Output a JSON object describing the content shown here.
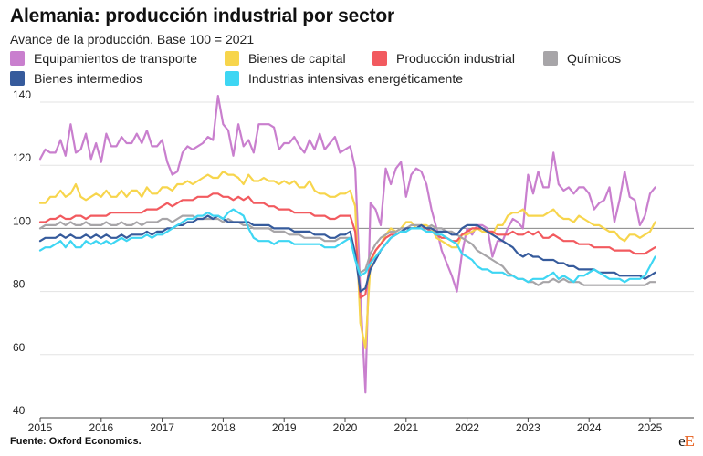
{
  "header": {
    "title": "Alemania: producción industrial por sector",
    "subtitle": "Avance de la producción. Base 100 = 2021"
  },
  "footer": {
    "source_label": "Fuente:",
    "source_text": "Oxford Economics.",
    "logo_a": "e",
    "logo_b": "E"
  },
  "chart_data": {
    "type": "line",
    "title": "Alemania: producción industrial por sector",
    "subtitle": "Avance de la producción. Base 100 = 2021",
    "xlabel": "",
    "ylabel": "",
    "x_start": "2015-01",
    "frequency": "monthly",
    "xlim": [
      "2015-01",
      "2025-03"
    ],
    "ylim": [
      40,
      140
    ],
    "x_ticks": [
      "2015",
      "2016",
      "2017",
      "2018",
      "2019",
      "2020",
      "2021",
      "2022",
      "2023",
      "2024",
      "2025"
    ],
    "y_ticks": [
      40,
      60,
      80,
      100,
      120,
      140
    ],
    "reference_line": 100,
    "grid": "horizontal",
    "legend_position": "top",
    "series": [
      {
        "name": "Equipamientos de transporte",
        "color": "#c97fce",
        "values": [
          122,
          125,
          124,
          124,
          128,
          123,
          133,
          124,
          125,
          130,
          122,
          127,
          121,
          130,
          126,
          126,
          129,
          127,
          127,
          130,
          127,
          131,
          126,
          126,
          128,
          121,
          117,
          118,
          124,
          126,
          125,
          126,
          127,
          129,
          128,
          142,
          133,
          131,
          123,
          133,
          126,
          128,
          124,
          133,
          133,
          133,
          132,
          125,
          127,
          127,
          129,
          126,
          124,
          128,
          125,
          130,
          125,
          127,
          129,
          124,
          125,
          126,
          119,
          80,
          48,
          108,
          106,
          101,
          119,
          114,
          119,
          121,
          110,
          117,
          119,
          118,
          114,
          106,
          100,
          93,
          89,
          85,
          80,
          92,
          100,
          98,
          101,
          101,
          100,
          91,
          96,
          96,
          100,
          103,
          102,
          100,
          117,
          111,
          118,
          113,
          113,
          124,
          114,
          112,
          113,
          111,
          113,
          113,
          111,
          106,
          108,
          109,
          113,
          102,
          109,
          118,
          110,
          109,
          101,
          104,
          111,
          113
        ]
      },
      {
        "name": "Bienes de capital",
        "color": "#f7d54c",
        "values": [
          108,
          108,
          110,
          110,
          112,
          110,
          111,
          114,
          110,
          109,
          110,
          111,
          110,
          112,
          110,
          110,
          112,
          110,
          112,
          112,
          110,
          113,
          111,
          111,
          113,
          113,
          112,
          114,
          114,
          115,
          114,
          115,
          116,
          117,
          116,
          116,
          118,
          117,
          117,
          116,
          114,
          117,
          115,
          115,
          116,
          115,
          115,
          114,
          115,
          114,
          115,
          113,
          113,
          115,
          112,
          111,
          111,
          110,
          110,
          111,
          111,
          112,
          107,
          70,
          62,
          89,
          93,
          95,
          98,
          100,
          99,
          100,
          102,
          102,
          100,
          101,
          101,
          100,
          97,
          96,
          95,
          94,
          94,
          98,
          98,
          99,
          100,
          99,
          99,
          98,
          101,
          101,
          104,
          105,
          105,
          106,
          104,
          104,
          104,
          104,
          105,
          106,
          104,
          103,
          103,
          102,
          104,
          103,
          102,
          101,
          101,
          100,
          99,
          99,
          97,
          96,
          98,
          98,
          97,
          98,
          99,
          102
        ]
      },
      {
        "name": "Producción industrial",
        "color": "#f25a5f",
        "values": [
          102,
          102,
          103,
          103,
          104,
          103,
          103,
          104,
          104,
          103,
          104,
          104,
          104,
          104,
          105,
          105,
          105,
          105,
          105,
          105,
          105,
          106,
          106,
          106,
          107,
          108,
          107,
          108,
          109,
          109,
          109,
          110,
          110,
          110,
          111,
          111,
          110,
          110,
          109,
          110,
          109,
          110,
          108,
          108,
          108,
          107,
          107,
          106,
          106,
          106,
          105,
          105,
          105,
          105,
          104,
          104,
          104,
          103,
          103,
          104,
          104,
          104,
          99,
          78,
          79,
          90,
          93,
          95,
          97,
          98,
          98,
          99,
          100,
          100,
          100,
          100,
          100,
          99,
          98,
          97,
          97,
          96,
          96,
          98,
          99,
          100,
          100,
          100,
          99,
          99,
          98,
          98,
          98,
          99,
          98,
          98,
          99,
          98,
          99,
          97,
          97,
          98,
          97,
          96,
          96,
          96,
          95,
          95,
          95,
          94,
          94,
          94,
          94,
          93,
          93,
          93,
          93,
          92,
          92,
          92,
          93,
          94
        ]
      },
      {
        "name": "Químicos",
        "color": "#a7a5a8",
        "values": [
          100,
          101,
          101,
          101,
          102,
          101,
          102,
          101,
          101,
          102,
          101,
          101,
          101,
          102,
          101,
          101,
          102,
          101,
          101,
          102,
          101,
          102,
          102,
          102,
          103,
          103,
          102,
          103,
          104,
          104,
          104,
          103,
          103,
          103,
          103,
          103,
          102,
          103,
          102,
          102,
          101,
          101,
          100,
          100,
          100,
          100,
          99,
          99,
          99,
          98,
          98,
          98,
          97,
          97,
          97,
          97,
          96,
          96,
          96,
          97,
          97,
          97,
          91,
          86,
          87,
          92,
          95,
          97,
          98,
          99,
          99,
          100,
          100,
          101,
          101,
          101,
          100,
          101,
          100,
          100,
          99,
          99,
          98,
          97,
          96,
          95,
          93,
          92,
          91,
          90,
          89,
          88,
          86,
          85,
          84,
          84,
          83,
          83,
          82,
          83,
          83,
          84,
          83,
          84,
          83,
          83,
          83,
          82,
          82,
          82,
          82,
          82,
          82,
          82,
          82,
          82,
          82,
          82,
          82,
          82,
          83,
          83
        ]
      },
      {
        "name": "Bienes intermedios",
        "color": "#365b9c",
        "values": [
          96,
          97,
          97,
          97,
          98,
          97,
          98,
          97,
          97,
          98,
          97,
          98,
          97,
          98,
          97,
          97,
          98,
          97,
          98,
          98,
          98,
          99,
          98,
          99,
          99,
          100,
          100,
          101,
          101,
          102,
          102,
          103,
          103,
          104,
          103,
          104,
          103,
          102,
          102,
          102,
          102,
          102,
          101,
          101,
          101,
          101,
          100,
          100,
          100,
          100,
          99,
          99,
          99,
          99,
          98,
          98,
          98,
          97,
          97,
          98,
          98,
          99,
          92,
          80,
          81,
          87,
          90,
          93,
          95,
          97,
          98,
          99,
          100,
          100,
          100,
          101,
          100,
          100,
          99,
          99,
          99,
          98,
          98,
          100,
          101,
          101,
          101,
          100,
          99,
          98,
          97,
          96,
          95,
          94,
          92,
          91,
          92,
          91,
          91,
          90,
          90,
          90,
          89,
          89,
          88,
          88,
          87,
          87,
          87,
          87,
          86,
          86,
          86,
          86,
          85,
          85,
          85,
          85,
          85,
          84,
          85,
          86
        ]
      },
      {
        "name": "Industrias intensivas energéticamente",
        "color": "#3ed6f3",
        "values": [
          93,
          94,
          94,
          95,
          96,
          94,
          96,
          94,
          94,
          96,
          95,
          96,
          95,
          96,
          95,
          96,
          97,
          96,
          97,
          97,
          97,
          98,
          97,
          98,
          98,
          99,
          100,
          101,
          102,
          103,
          103,
          104,
          104,
          105,
          104,
          104,
          103,
          105,
          106,
          105,
          104,
          100,
          97,
          96,
          96,
          96,
          95,
          96,
          96,
          96,
          95,
          95,
          95,
          95,
          95,
          95,
          94,
          94,
          94,
          95,
          96,
          97,
          90,
          85,
          86,
          89,
          91,
          93,
          95,
          97,
          98,
          99,
          99,
          100,
          100,
          100,
          99,
          99,
          98,
          98,
          97,
          96,
          95,
          92,
          91,
          90,
          88,
          87,
          87,
          86,
          86,
          86,
          85,
          85,
          84,
          84,
          83,
          84,
          84,
          84,
          85,
          86,
          84,
          85,
          84,
          83,
          85,
          85,
          86,
          87,
          86,
          85,
          84,
          84,
          84,
          83,
          84,
          84,
          84,
          85,
          88,
          91
        ]
      }
    ]
  }
}
